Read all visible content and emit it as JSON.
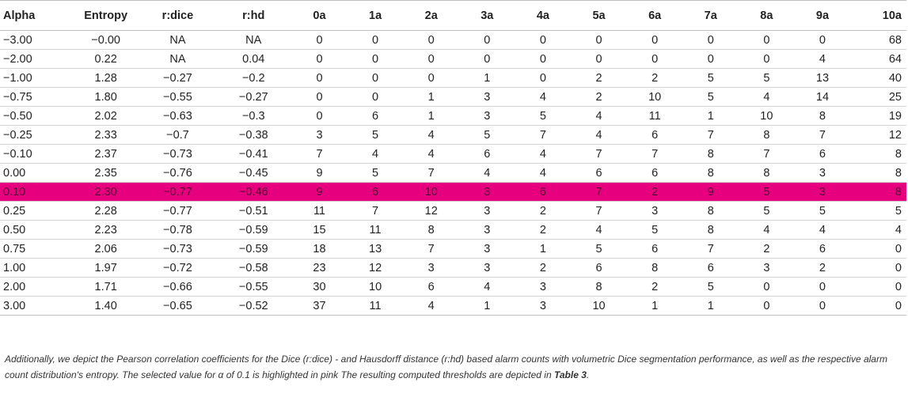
{
  "table": {
    "headers": [
      "Alpha",
      "Entropy",
      "r:dice",
      "r:hd",
      "0a",
      "1a",
      "2a",
      "3a",
      "4a",
      "5a",
      "6a",
      "7a",
      "8a",
      "9a",
      "10a"
    ],
    "rows": [
      [
        "−3.00",
        "−0.00",
        "NA",
        "NA",
        "0",
        "0",
        "0",
        "0",
        "0",
        "0",
        "0",
        "0",
        "0",
        "0",
        "68"
      ],
      [
        "−2.00",
        "0.22",
        "NA",
        "0.04",
        "0",
        "0",
        "0",
        "0",
        "0",
        "0",
        "0",
        "0",
        "0",
        "4",
        "64"
      ],
      [
        "−1.00",
        "1.28",
        "−0.27",
        "−0.2",
        "0",
        "0",
        "0",
        "1",
        "0",
        "2",
        "2",
        "5",
        "5",
        "13",
        "40"
      ],
      [
        "−0.75",
        "1.80",
        "−0.55",
        "−0.27",
        "0",
        "0",
        "1",
        "3",
        "4",
        "2",
        "10",
        "5",
        "4",
        "14",
        "25"
      ],
      [
        "−0.50",
        "2.02",
        "−0.63",
        "−0.3",
        "0",
        "6",
        "1",
        "3",
        "5",
        "4",
        "11",
        "1",
        "10",
        "8",
        "19"
      ],
      [
        "−0.25",
        "2.33",
        "−0.7",
        "−0.38",
        "3",
        "5",
        "4",
        "5",
        "7",
        "4",
        "6",
        "7",
        "8",
        "7",
        "12"
      ],
      [
        "−0.10",
        "2.37",
        "−0.73",
        "−0.41",
        "7",
        "4",
        "4",
        "6",
        "4",
        "7",
        "7",
        "8",
        "7",
        "6",
        "8"
      ],
      [
        "0.00",
        "2.35",
        "−0.76",
        "−0.45",
        "9",
        "5",
        "7",
        "4",
        "4",
        "6",
        "6",
        "8",
        "8",
        "3",
        "8"
      ],
      [
        "0.10",
        "2.30",
        "−0.77",
        "−0.46",
        "9",
        "6",
        "10",
        "3",
        "6",
        "7",
        "2",
        "9",
        "5",
        "3",
        "8"
      ],
      [
        "0.25",
        "2.28",
        "−0.77",
        "−0.51",
        "11",
        "7",
        "12",
        "3",
        "2",
        "7",
        "3",
        "8",
        "5",
        "5",
        "5"
      ],
      [
        "0.50",
        "2.23",
        "−0.78",
        "−0.59",
        "15",
        "11",
        "8",
        "3",
        "2",
        "4",
        "5",
        "8",
        "4",
        "4",
        "4"
      ],
      [
        "0.75",
        "2.06",
        "−0.73",
        "−0.59",
        "18",
        "13",
        "7",
        "3",
        "1",
        "5",
        "6",
        "7",
        "2",
        "6",
        "0"
      ],
      [
        "1.00",
        "1.97",
        "−0.72",
        "−0.58",
        "23",
        "12",
        "3",
        "3",
        "2",
        "6",
        "8",
        "6",
        "3",
        "2",
        "0"
      ],
      [
        "2.00",
        "1.71",
        "−0.66",
        "−0.55",
        "30",
        "10",
        "6",
        "4",
        "3",
        "8",
        "2",
        "5",
        "0",
        "0",
        "0"
      ],
      [
        "3.00",
        "1.40",
        "−0.65",
        "−0.52",
        "37",
        "11",
        "4",
        "1",
        "3",
        "10",
        "1",
        "1",
        "0",
        "0",
        "0"
      ]
    ],
    "highlight_row_index": 8,
    "highlight_color": "#e6007e"
  },
  "caption": {
    "text": "Additionally, we depict the Pearson correlation coefficients for the Dice (r:dice) - and Hausdorff distance (r:hd) based alarm counts with volumetric Dice segmentation performance, as well as the respective alarm count distribution's entropy. The selected value for α of 0.1 is highlighted in pink The resulting computed thresholds are depicted in ",
    "table_ref": "Table 3",
    "end": "."
  }
}
